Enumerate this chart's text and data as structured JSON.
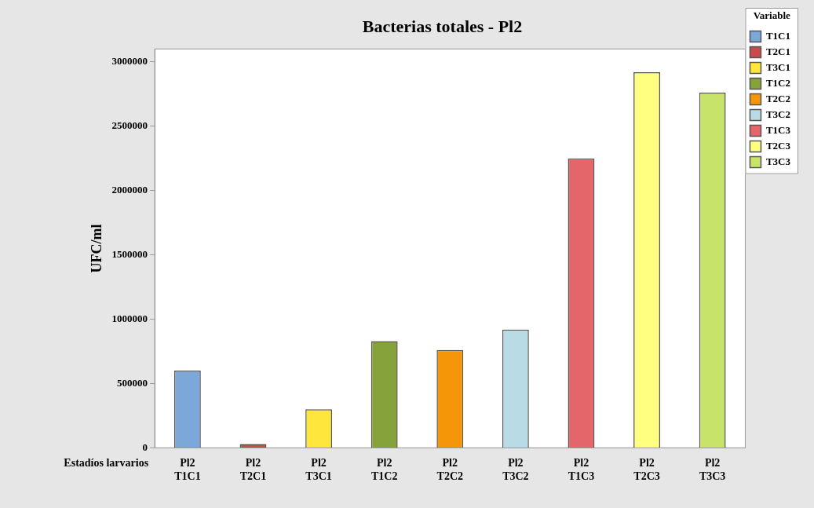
{
  "chart_data": {
    "type": "bar",
    "title": "Bacterias totales - Pl2",
    "ylabel": "UFC/ml",
    "annotations": [
      "Estadíos larvarios"
    ],
    "categories": [
      "Pl2\nT1C1",
      "Pl2\nT2C1",
      "Pl2\nT3C1",
      "Pl2\nT1C2",
      "Pl2\nT2C2",
      "Pl2\nT3C2",
      "Pl2\nT1C3",
      "Pl2\nT2C3",
      "Pl2\nT3C3"
    ],
    "series": [
      {
        "name": "T1C1",
        "color": "#7ba7d9",
        "values": [
          600000,
          null,
          null,
          null,
          null,
          null,
          null,
          null,
          null
        ]
      },
      {
        "name": "T2C1",
        "color": "#c94a4a",
        "values": [
          null,
          30000,
          null,
          null,
          null,
          null,
          null,
          null,
          null
        ]
      },
      {
        "name": "T3C1",
        "color": "#ffe63c",
        "values": [
          null,
          null,
          300000,
          null,
          null,
          null,
          null,
          null,
          null
        ]
      },
      {
        "name": "T1C2",
        "color": "#86a23b",
        "values": [
          null,
          null,
          null,
          830000,
          null,
          null,
          null,
          null,
          null
        ]
      },
      {
        "name": "T2C2",
        "color": "#f5960a",
        "values": [
          null,
          null,
          null,
          null,
          760000,
          null,
          null,
          null,
          null
        ]
      },
      {
        "name": "T3C2",
        "color": "#b9dbe6",
        "values": [
          null,
          null,
          null,
          null,
          null,
          920000,
          null,
          null,
          null
        ]
      },
      {
        "name": "T1C3",
        "color": "#e5666a",
        "values": [
          null,
          null,
          null,
          null,
          null,
          null,
          2250000,
          null,
          null
        ]
      },
      {
        "name": "T2C3",
        "color": "#ffff80",
        "values": [
          null,
          null,
          null,
          null,
          null,
          null,
          null,
          2920000,
          null
        ]
      },
      {
        "name": "T3C3",
        "color": "#c8e36a",
        "values": [
          null,
          null,
          null,
          null,
          null,
          null,
          null,
          null,
          2760000
        ]
      }
    ],
    "legend_title": "Variable",
    "legend": "right",
    "grid": false,
    "ylim": [
      0,
      3100000
    ],
    "yticks": [
      0,
      500000,
      1000000,
      1500000,
      2000000,
      2500000,
      3000000
    ]
  }
}
